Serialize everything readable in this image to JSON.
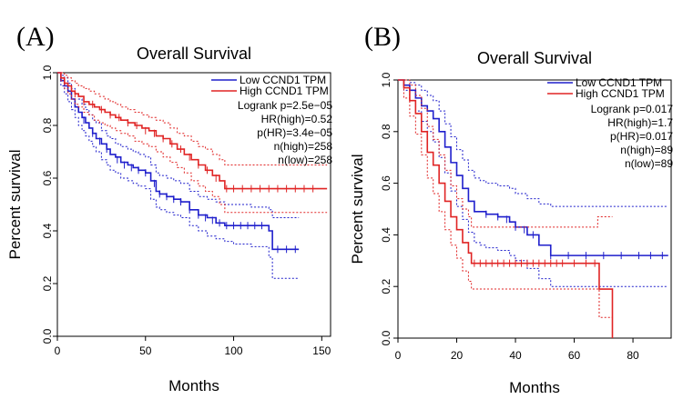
{
  "chart_data": [
    {
      "type": "line",
      "panel_label": "(A)",
      "title": "Overall Survival",
      "xlabel": "Months",
      "ylabel": "Percent survival",
      "xlim": [
        0,
        155
      ],
      "ylim": [
        0,
        1.0
      ],
      "x_ticks": [
        0,
        50,
        100,
        150
      ],
      "x_tick_labels": [
        "0",
        "50",
        "100",
        "150"
      ],
      "y_ticks": [
        0,
        0.2,
        0.4,
        0.6,
        0.8,
        1.0
      ],
      "y_tick_labels": [
        "0.0",
        "0.2",
        "0.4",
        "0.6",
        "0.8",
        "1.0"
      ],
      "legend": [
        "Low CCND1 TPM",
        "High CCND1 TPM"
      ],
      "stats": [
        "Logrank p=2.5e−05",
        "HR(high)=0.52",
        "p(HR)=3.4e−05",
        "n(high)=258",
        "n(low)=258"
      ],
      "series": [
        {
          "name": "Low CCND1 TPM",
          "color": "#1f1fcc",
          "x": [
            0,
            2,
            4,
            6,
            8,
            10,
            12,
            14,
            16,
            18,
            20,
            22,
            25,
            28,
            30,
            33,
            36,
            40,
            43,
            46,
            50,
            53,
            56,
            58,
            62,
            66,
            70,
            75,
            80,
            85,
            90,
            95,
            100,
            110,
            120,
            122,
            137
          ],
          "y": [
            1.0,
            0.97,
            0.95,
            0.93,
            0.9,
            0.87,
            0.85,
            0.83,
            0.81,
            0.79,
            0.77,
            0.75,
            0.73,
            0.71,
            0.69,
            0.68,
            0.66,
            0.65,
            0.64,
            0.63,
            0.62,
            0.59,
            0.55,
            0.54,
            0.53,
            0.52,
            0.51,
            0.48,
            0.46,
            0.45,
            0.43,
            0.42,
            0.42,
            0.42,
            0.4,
            0.33,
            0.33
          ],
          "upper": [
            1.0,
            0.99,
            0.98,
            0.96,
            0.94,
            0.92,
            0.9,
            0.88,
            0.86,
            0.84,
            0.82,
            0.81,
            0.78,
            0.76,
            0.75,
            0.73,
            0.72,
            0.71,
            0.7,
            0.69,
            0.68,
            0.65,
            0.62,
            0.61,
            0.6,
            0.59,
            0.58,
            0.55,
            0.53,
            0.52,
            0.51,
            0.5,
            0.5,
            0.49,
            0.48,
            0.45,
            0.45
          ],
          "lower": [
            1.0,
            0.95,
            0.92,
            0.89,
            0.86,
            0.83,
            0.8,
            0.78,
            0.76,
            0.74,
            0.72,
            0.7,
            0.67,
            0.65,
            0.63,
            0.62,
            0.6,
            0.59,
            0.58,
            0.57,
            0.56,
            0.52,
            0.49,
            0.48,
            0.47,
            0.46,
            0.45,
            0.42,
            0.4,
            0.38,
            0.37,
            0.36,
            0.35,
            0.34,
            0.3,
            0.22,
            0.22
          ],
          "censor_x": [
            15,
            20,
            24,
            28,
            34,
            38,
            42,
            46,
            50,
            55,
            58,
            62,
            66,
            70,
            75,
            80,
            84,
            88,
            92,
            96,
            100,
            104,
            108,
            112,
            116,
            125,
            130,
            135
          ],
          "censor_y": [
            0.82,
            0.77,
            0.74,
            0.71,
            0.67,
            0.65,
            0.64,
            0.63,
            0.62,
            0.58,
            0.54,
            0.53,
            0.52,
            0.51,
            0.48,
            0.46,
            0.45,
            0.44,
            0.43,
            0.42,
            0.42,
            0.42,
            0.42,
            0.42,
            0.42,
            0.33,
            0.33,
            0.33
          ]
        },
        {
          "name": "High CCND1 TPM",
          "color": "#e02424",
          "x": [
            0,
            2,
            4,
            6,
            8,
            10,
            12,
            15,
            18,
            21,
            24,
            27,
            30,
            33,
            36,
            40,
            44,
            48,
            52,
            56,
            60,
            64,
            68,
            72,
            76,
            80,
            84,
            88,
            92,
            95,
            100,
            120,
            153
          ],
          "y": [
            1.0,
            0.98,
            0.96,
            0.95,
            0.93,
            0.92,
            0.91,
            0.89,
            0.88,
            0.87,
            0.86,
            0.85,
            0.84,
            0.83,
            0.82,
            0.81,
            0.8,
            0.79,
            0.78,
            0.76,
            0.75,
            0.73,
            0.71,
            0.69,
            0.67,
            0.65,
            0.63,
            0.61,
            0.59,
            0.56,
            0.56,
            0.56,
            0.56
          ],
          "upper": [
            1.0,
            1.0,
            0.99,
            0.98,
            0.97,
            0.96,
            0.95,
            0.94,
            0.93,
            0.92,
            0.91,
            0.9,
            0.89,
            0.88,
            0.87,
            0.86,
            0.85,
            0.84,
            0.83,
            0.82,
            0.81,
            0.79,
            0.77,
            0.76,
            0.74,
            0.72,
            0.71,
            0.69,
            0.67,
            0.65,
            0.65,
            0.65,
            0.65
          ],
          "lower": [
            1.0,
            0.97,
            0.94,
            0.92,
            0.9,
            0.88,
            0.87,
            0.85,
            0.84,
            0.82,
            0.81,
            0.8,
            0.79,
            0.78,
            0.77,
            0.76,
            0.74,
            0.73,
            0.72,
            0.7,
            0.68,
            0.66,
            0.64,
            0.62,
            0.59,
            0.57,
            0.55,
            0.53,
            0.5,
            0.47,
            0.47,
            0.47,
            0.47
          ],
          "censor_x": [
            10,
            15,
            20,
            25,
            30,
            35,
            40,
            45,
            50,
            55,
            60,
            65,
            70,
            75,
            80,
            85,
            90,
            96,
            100,
            105,
            110,
            115,
            120,
            125,
            130,
            135,
            140,
            145
          ],
          "censor_y": [
            0.92,
            0.89,
            0.88,
            0.86,
            0.84,
            0.83,
            0.81,
            0.8,
            0.78,
            0.77,
            0.75,
            0.73,
            0.71,
            0.68,
            0.65,
            0.63,
            0.6,
            0.56,
            0.56,
            0.56,
            0.56,
            0.56,
            0.56,
            0.56,
            0.56,
            0.56,
            0.56,
            0.56
          ]
        }
      ]
    },
    {
      "type": "line",
      "panel_label": "(B)",
      "title": "Overall Survival",
      "xlabel": "Months",
      "ylabel": "Percent survival",
      "xlim": [
        0,
        93
      ],
      "ylim": [
        0,
        1.0
      ],
      "x_ticks": [
        0,
        20,
        40,
        60,
        80
      ],
      "x_tick_labels": [
        "0",
        "20",
        "40",
        "60",
        "80"
      ],
      "y_ticks": [
        0,
        0.2,
        0.4,
        0.6,
        0.8,
        1.0
      ],
      "y_tick_labels": [
        "0.0",
        "0.2",
        "0.4",
        "0.6",
        "0.8",
        "1.0"
      ],
      "legend": [
        "Low CCND1 TPM",
        "High CCND1 TPM"
      ],
      "stats": [
        "Logrank p=0.017",
        "HR(high)=1.7",
        "p(HR)=0.017",
        "n(high)=89",
        "n(low)=89"
      ],
      "series": [
        {
          "name": "Low CCND1 TPM",
          "color": "#1f1fcc",
          "x": [
            0,
            2,
            4,
            6,
            8,
            10,
            12,
            14,
            16,
            18,
            20,
            22,
            24,
            26,
            28,
            30,
            34,
            38,
            40,
            44,
            48,
            52,
            56,
            60,
            70,
            80,
            92
          ],
          "y": [
            1.0,
            0.98,
            0.96,
            0.93,
            0.9,
            0.88,
            0.85,
            0.8,
            0.74,
            0.68,
            0.63,
            0.58,
            0.53,
            0.49,
            0.49,
            0.48,
            0.47,
            0.45,
            0.43,
            0.4,
            0.36,
            0.32,
            0.32,
            0.32,
            0.32,
            0.32,
            0.32
          ],
          "upper": [
            1.0,
            1.0,
            0.99,
            0.98,
            0.96,
            0.94,
            0.92,
            0.88,
            0.83,
            0.78,
            0.73,
            0.69,
            0.65,
            0.62,
            0.61,
            0.6,
            0.59,
            0.58,
            0.56,
            0.54,
            0.52,
            0.51,
            0.51,
            0.51,
            0.51,
            0.51,
            0.51
          ],
          "lower": [
            1.0,
            0.96,
            0.92,
            0.88,
            0.84,
            0.8,
            0.76,
            0.7,
            0.64,
            0.57,
            0.51,
            0.46,
            0.41,
            0.37,
            0.36,
            0.35,
            0.34,
            0.32,
            0.3,
            0.27,
            0.23,
            0.2,
            0.2,
            0.2,
            0.2,
            0.2,
            0.2
          ],
          "censor_x": [
            30,
            34,
            37,
            40,
            43,
            46,
            52,
            58,
            64,
            70,
            76,
            82,
            86,
            90
          ],
          "censor_y": [
            0.48,
            0.47,
            0.46,
            0.43,
            0.42,
            0.4,
            0.32,
            0.32,
            0.32,
            0.32,
            0.32,
            0.32,
            0.32,
            0.32
          ]
        },
        {
          "name": "High CCND1 TPM",
          "color": "#e02424",
          "x": [
            0,
            2,
            4,
            6,
            8,
            10,
            12,
            14,
            16,
            18,
            20,
            22,
            24,
            25,
            30,
            40,
            50,
            60,
            68,
            68.5,
            72,
            73
          ],
          "y": [
            1.0,
            0.97,
            0.92,
            0.87,
            0.8,
            0.72,
            0.67,
            0.6,
            0.53,
            0.47,
            0.42,
            0.37,
            0.33,
            0.29,
            0.29,
            0.29,
            0.29,
            0.29,
            0.29,
            0.19,
            0.19,
            0.0
          ],
          "upper": [
            1.0,
            1.0,
            0.98,
            0.94,
            0.89,
            0.82,
            0.77,
            0.71,
            0.65,
            0.59,
            0.54,
            0.5,
            0.47,
            0.43,
            0.43,
            0.43,
            0.43,
            0.43,
            0.47,
            0.47,
            0.47,
            0.47
          ],
          "lower": [
            1.0,
            0.93,
            0.86,
            0.79,
            0.71,
            0.62,
            0.56,
            0.49,
            0.42,
            0.36,
            0.31,
            0.26,
            0.22,
            0.19,
            0.19,
            0.19,
            0.19,
            0.19,
            0.19,
            0.08,
            0.08,
            0.08
          ],
          "censor_x": [
            26,
            28,
            30,
            32,
            34,
            36,
            38,
            40,
            42,
            44,
            46,
            48,
            50,
            52,
            54,
            56,
            60,
            64,
            67
          ],
          "censor_y": [
            0.29,
            0.29,
            0.29,
            0.29,
            0.29,
            0.29,
            0.29,
            0.29,
            0.29,
            0.29,
            0.29,
            0.29,
            0.29,
            0.29,
            0.29,
            0.29,
            0.29,
            0.29,
            0.29
          ]
        }
      ]
    }
  ]
}
